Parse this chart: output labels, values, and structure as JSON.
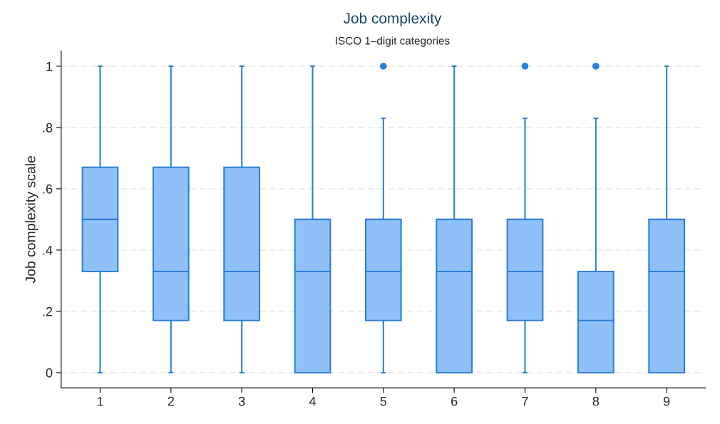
{
  "chart_data": {
    "type": "box",
    "title": "Job complexity",
    "subtitle": "ISCO 1–digit categories",
    "ylabel": "Job complexity scale",
    "categories": [
      "1",
      "2",
      "3",
      "4",
      "5",
      "6",
      "7",
      "8",
      "9"
    ],
    "ylim": [
      -0.05,
      1.05
    ],
    "yticks": [
      0,
      {
        "value": 0.2,
        "label": ".2"
      },
      {
        "value": 0.4,
        "label": ".4"
      },
      {
        "value": 0.6,
        "label": ".6"
      },
      {
        "value": 0.8,
        "label": ".8"
      },
      1
    ],
    "grid": "y",
    "series": [
      {
        "color": "#90c0f8",
        "boxes": [
          {
            "low": 0,
            "q1": 0.33,
            "median": 0.5,
            "q3": 0.67,
            "high": 1
          },
          {
            "low": 0,
            "q1": 0.17,
            "median": 0.33,
            "q3": 0.67,
            "high": 1
          },
          {
            "low": 0,
            "q1": 0.17,
            "median": 0.33,
            "q3": 0.67,
            "high": 1
          },
          {
            "low": 0,
            "q1": 0,
            "median": 0.33,
            "q3": 0.5,
            "high": 1
          },
          {
            "low": 0,
            "q1": 0.17,
            "median": 0.33,
            "q3": 0.5,
            "high": 0.83,
            "outliers": [
              1
            ]
          },
          {
            "low": 0,
            "q1": 0,
            "median": 0.33,
            "q3": 0.5,
            "high": 1
          },
          {
            "low": 0,
            "q1": 0.17,
            "median": 0.33,
            "q3": 0.5,
            "high": 0.83,
            "outliers": [
              1
            ]
          },
          {
            "low": 0,
            "q1": 0,
            "median": 0.17,
            "q3": 0.33,
            "high": 0.83,
            "outliers": [
              1
            ]
          },
          {
            "low": 0,
            "q1": 0,
            "median": 0.33,
            "q3": 0.5,
            "high": 1
          }
        ]
      }
    ]
  }
}
